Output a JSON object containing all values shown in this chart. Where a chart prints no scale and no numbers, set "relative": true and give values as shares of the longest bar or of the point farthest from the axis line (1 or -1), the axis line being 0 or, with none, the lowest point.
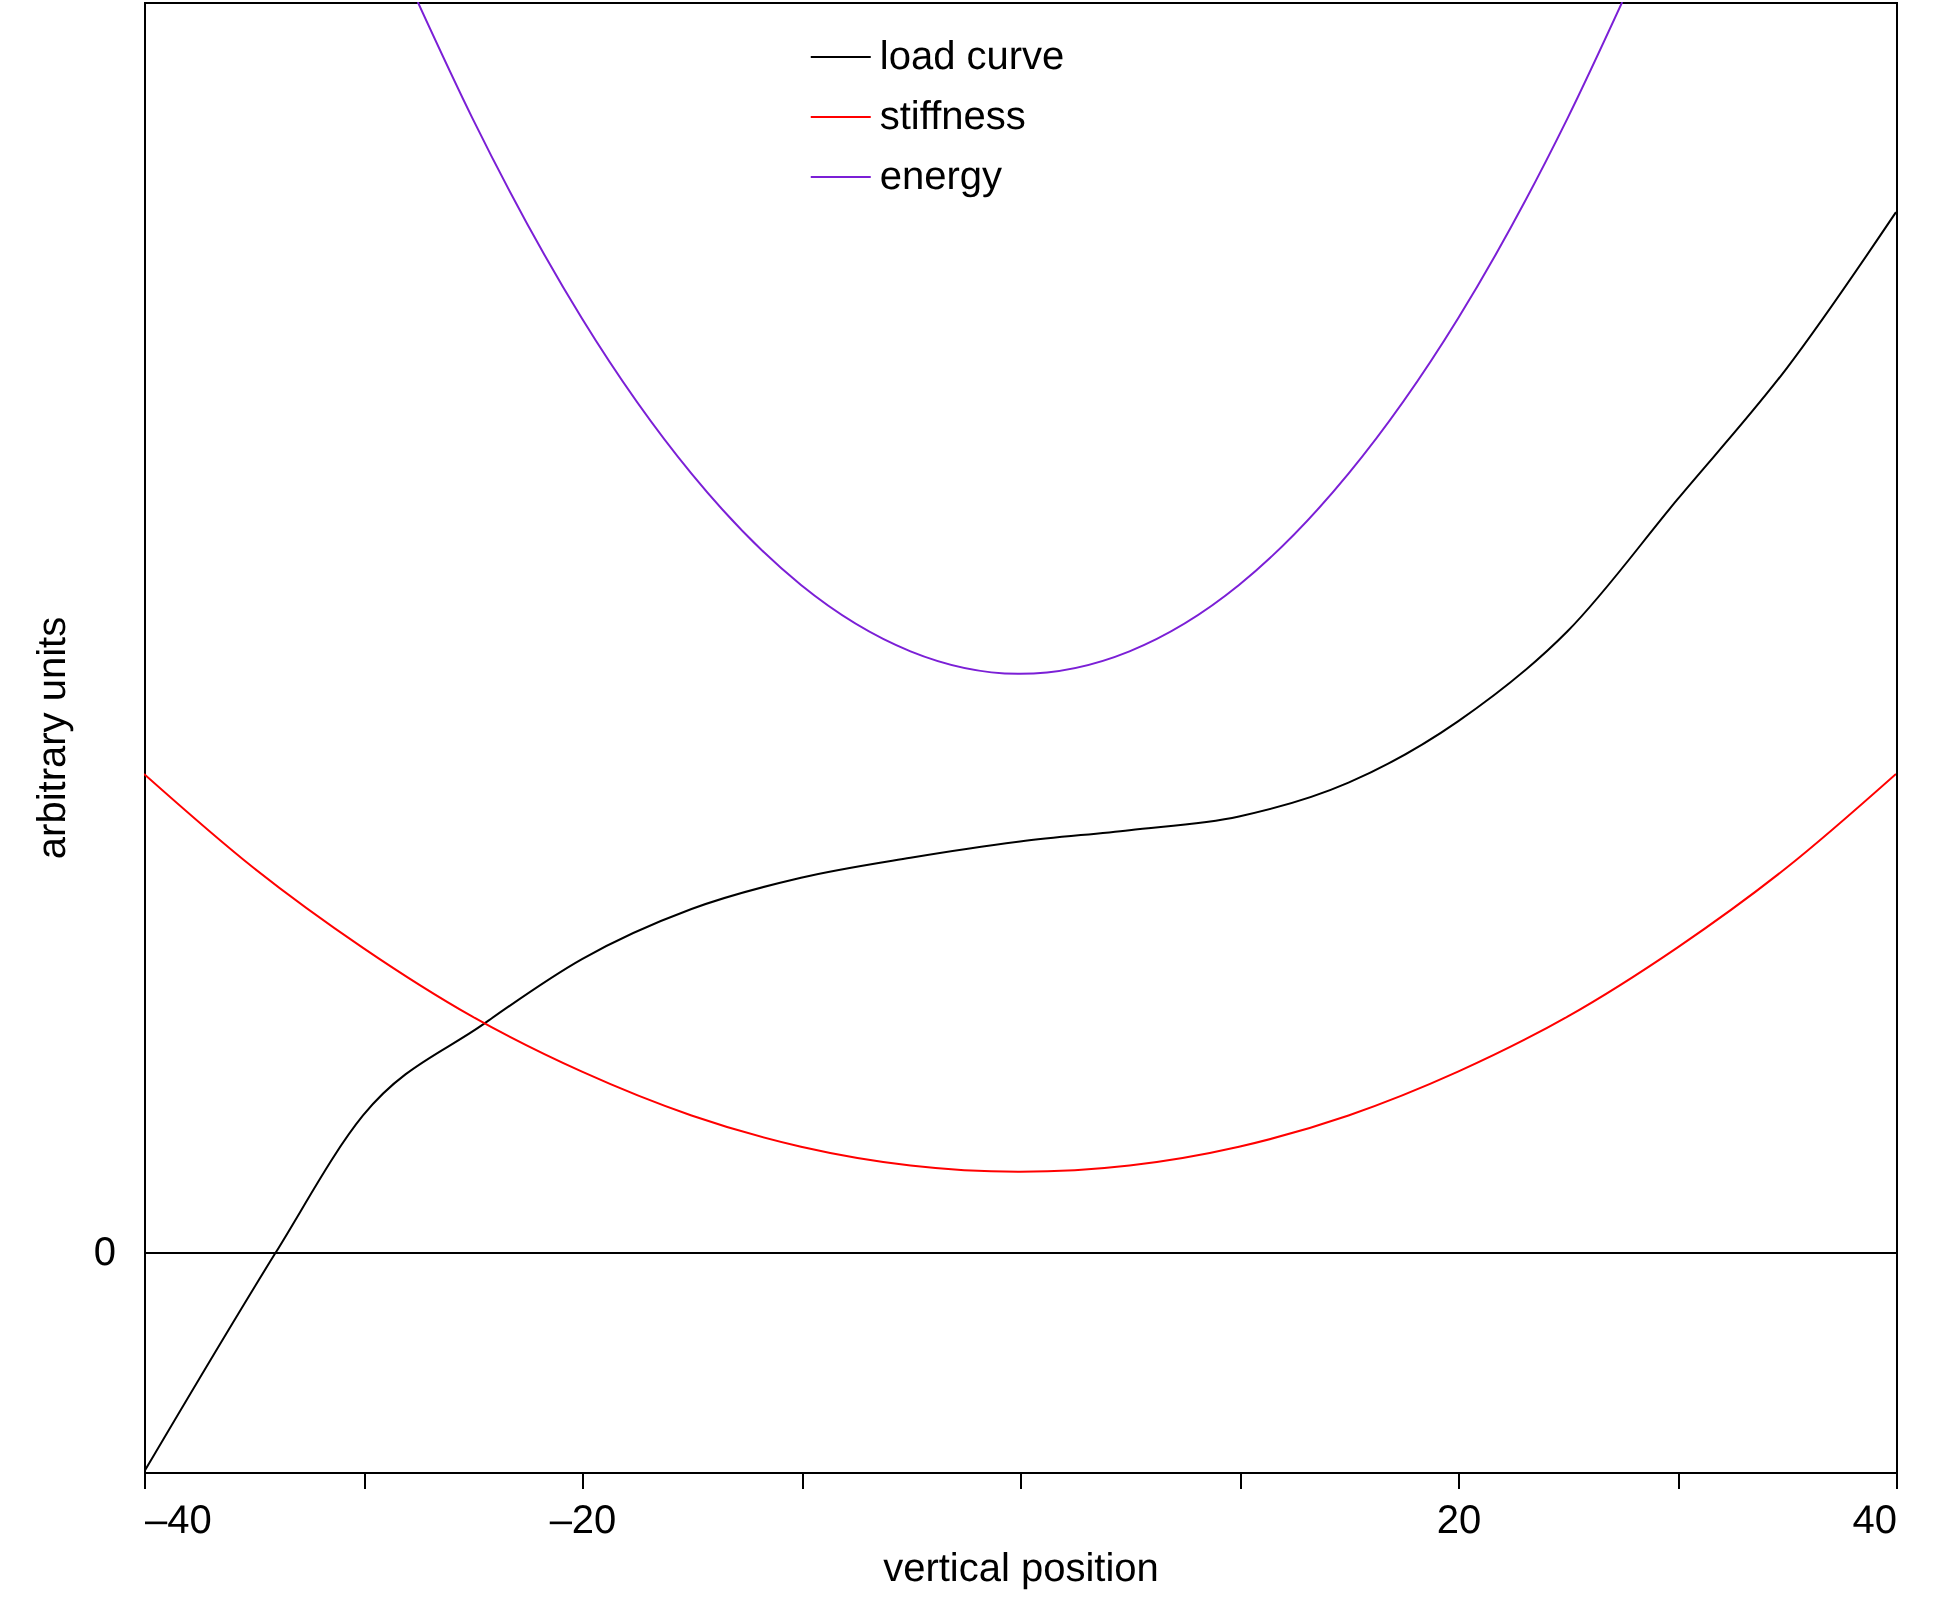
{
  "chart_data": {
    "type": "line",
    "relative": true,
    "xlabel": "vertical position",
    "ylabel": "arbitrary units",
    "xlim": [
      -40,
      40
    ],
    "xticks": [
      {
        "value": -40,
        "label": "–40"
      },
      {
        "value": -30,
        "label": null
      },
      {
        "value": -20,
        "label": "–20"
      },
      {
        "value": -10,
        "label": null
      },
      {
        "value": 0,
        "label": null
      },
      {
        "value": 10,
        "label": null
      },
      {
        "value": 20,
        "label": "20"
      },
      {
        "value": 30,
        "label": null
      },
      {
        "value": 40,
        "label": "40"
      }
    ],
    "grid": false,
    "legend": "top",
    "ref_lines": [
      {
        "axis": "y",
        "value": 0,
        "label": "0",
        "color": "#000000"
      }
    ],
    "series": [
      {
        "name": "load curve",
        "color": "#000000",
        "x": [
          -40,
          -34,
          -30,
          -24.5,
          -20,
          -15,
          -10,
          -5,
          0,
          5,
          10,
          15,
          20,
          25,
          30,
          35,
          40
        ],
        "values": [
          -0.175,
          0,
          0.11,
          0.183,
          0.235,
          0.275,
          0.3,
          0.316,
          0.329,
          0.338,
          0.349,
          0.376,
          0.425,
          0.497,
          0.602,
          0.707,
          0.832
        ]
      },
      {
        "name": "stiffness",
        "color": "#ff0000",
        "x": [
          -40,
          -35,
          -30,
          -25,
          -20,
          -15,
          -10,
          -5,
          0,
          5,
          10,
          15,
          20,
          25,
          30,
          35,
          40
        ],
        "values": [
          0.383,
          0.308,
          0.244,
          0.189,
          0.145,
          0.11,
          0.085,
          0.07,
          0.065,
          0.07,
          0.085,
          0.11,
          0.145,
          0.189,
          0.244,
          0.308,
          0.383
        ]
      },
      {
        "name": "energy",
        "color": "#7b1fd6",
        "x": [
          -27.5,
          -25,
          -20,
          -15,
          -10,
          -5,
          0,
          5,
          10,
          15,
          20,
          25,
          27.5
        ],
        "values": [
          1,
          0.907,
          0.747,
          0.623,
          0.534,
          0.481,
          0.463,
          0.481,
          0.534,
          0.623,
          0.747,
          0.907,
          1
        ]
      }
    ]
  }
}
